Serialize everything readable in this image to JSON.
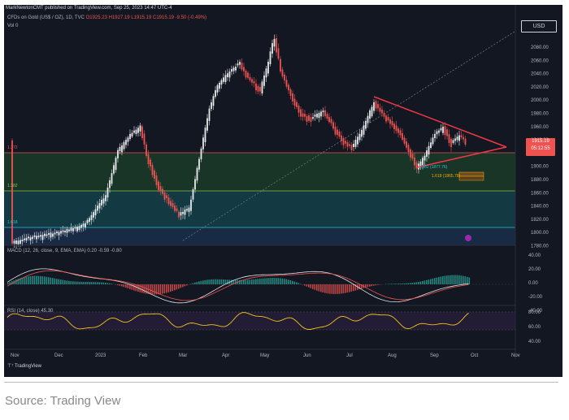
{
  "header": {
    "publish_line": "MarkNewtonCMT published on TradingView.com, Sep 25, 2023 14:47 UTC-4",
    "symbol": "CFDs on Gold (US$ / OZ), 1D, TVC",
    "ohlc": "O1925.23 H1927.19 L1915.19 C1915.19 -9.50 (-0.49%)",
    "vol": "Vol  0"
  },
  "price_axis": {
    "currency": "USD",
    "ticks": [
      "2080.00",
      "2060.00",
      "2040.00",
      "2020.00",
      "2000.00",
      "1980.00",
      "1960.00",
      "1940.00",
      "1920.00",
      "1900.00",
      "1880.00",
      "1860.00",
      "1840.00",
      "1820.00",
      "1800.00",
      "1780.00"
    ],
    "current_price": "1915.19",
    "countdown": "05:12:55"
  },
  "fib_labels": {
    "l1": "1.272",
    "l2": "1.382",
    "l3": "1.382 (1877.76)",
    "l4": "1.618 (1865.78)",
    "l5": "1.618"
  },
  "macd": {
    "label": "MACD (12, 26, close, 9, EMA, EMA)  0.20  -0.59  -0.80",
    "ticks": [
      "40.00",
      "20.00",
      "0.00",
      "-20.00",
      "-40.00"
    ]
  },
  "rsi": {
    "label": "RSI (14, close)  45.30",
    "ticks": [
      "80.00",
      "60.00",
      "40.00"
    ]
  },
  "time_axis": [
    "Nov",
    "Dec",
    "2023",
    "Feb",
    "Mar",
    "Apr",
    "May",
    "Jun",
    "Jul",
    "Aug",
    "Sep",
    "Oct",
    "Nov"
  ],
  "footer": {
    "logo": "TradingView",
    "source": "Source:  Trading View"
  },
  "colors": {
    "background": "#131722",
    "up": "#26a69a",
    "down": "#ef5350",
    "trendline": "#f23645",
    "rsi": "#f5c518"
  }
}
